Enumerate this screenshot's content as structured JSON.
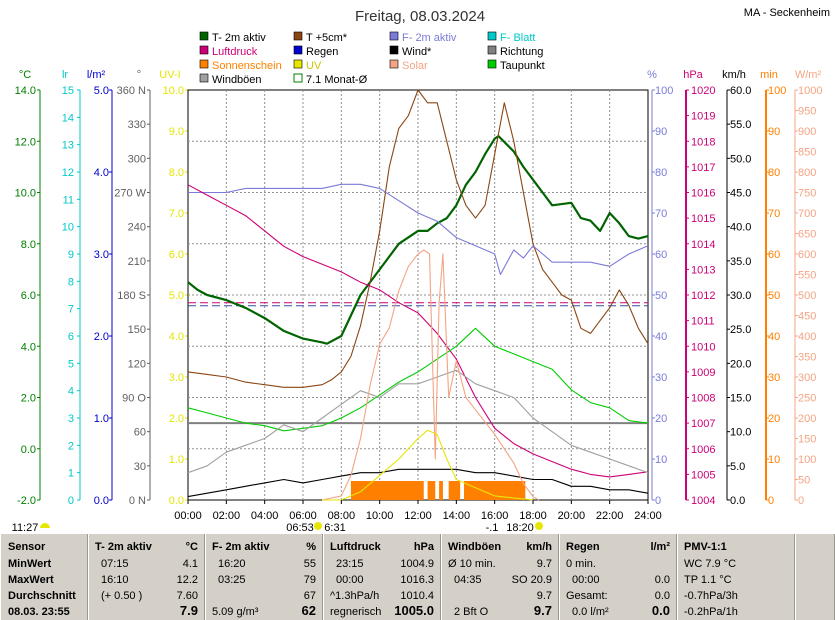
{
  "chart_data": {
    "type": "line",
    "title": "Freitag, 08.03.2024",
    "station": "MA - Seckenheim",
    "legend": [
      {
        "label": "T- 2m aktiv",
        "color": "#006400"
      },
      {
        "label": "T +5cm*",
        "color": "#8b4513"
      },
      {
        "label": "F- 2m aktiv",
        "color": "#7b7bd9"
      },
      {
        "label": "F- Blatt",
        "color": "#00c8c8"
      },
      {
        "label": "Luftdruck",
        "color": "#cc0077"
      },
      {
        "label": "Regen",
        "color": "#0000cc"
      },
      {
        "label": "Wind*",
        "color": "#000000"
      },
      {
        "label": "Richtung",
        "color": "#808080"
      },
      {
        "label": "Sonnenschein",
        "color": "#ff8000"
      },
      {
        "label": "UV",
        "color": "#e6e600"
      },
      {
        "label": "Solar",
        "color": "#f4a484"
      },
      {
        "label": "Taupunkt",
        "color": "#00cc00"
      },
      {
        "label": "Windböen",
        "color": "#a0a0a0"
      },
      {
        "label": "7.1 Monat-Ø",
        "color": "#008000"
      }
    ],
    "axes": [
      {
        "unit": "°C",
        "color": "#008000",
        "ticks": [
          "14.0",
          "12.0",
          "10.0",
          "8.0",
          "6.0",
          "4.0",
          "2.0",
          "0.0",
          "-2.0"
        ]
      },
      {
        "unit": "lr",
        "color": "#00c8c8",
        "ticks": [
          "15",
          "14",
          "13",
          "12",
          "11",
          "10",
          "9",
          "8",
          "7",
          "6",
          "5",
          "4",
          "3",
          "2",
          "1",
          "0"
        ]
      },
      {
        "unit": "l/m²",
        "color": "#0000cc",
        "ticks": [
          "5.0",
          "4.0",
          "3.0",
          "2.0",
          "1.0",
          "0.0"
        ]
      },
      {
        "unit": "°",
        "color": "#606060",
        "ticks": [
          "360 N",
          "330",
          "300",
          "270 W",
          "240",
          "210",
          "180 S",
          "150",
          "120",
          "90 O",
          "60",
          "30",
          "0 N"
        ]
      },
      {
        "unit": "UV-I",
        "color": "#e6e600",
        "ticks": [
          "10.0",
          "9.0",
          "8.0",
          "7.0",
          "6.0",
          "5.0",
          "4.0",
          "3.0",
          "2.0",
          "1.0",
          "0.0"
        ]
      },
      {
        "unit": "%",
        "color": "#7b7bd9",
        "ticks": [
          "100",
          "90",
          "80",
          "70",
          "60",
          "50",
          "40",
          "30",
          "20",
          "10",
          "0"
        ]
      },
      {
        "unit": "hPa",
        "color": "#cc0077",
        "ticks": [
          "1020",
          "1019",
          "1018",
          "1017",
          "1016",
          "1015",
          "1014",
          "1013",
          "1012",
          "1011",
          "1010",
          "1009",
          "1008",
          "1007",
          "1006",
          "1005",
          "1004"
        ]
      },
      {
        "unit": "km/h",
        "color": "#000000",
        "ticks": [
          "60.0",
          "55.0",
          "50.0",
          "45.0",
          "40.0",
          "35.0",
          "30.0",
          "25.0",
          "20.0",
          "15.0",
          "10.0",
          "5.0",
          "0.0"
        ]
      },
      {
        "unit": "min",
        "color": "#ff8000",
        "ticks": [
          "100",
          "90",
          "80",
          "70",
          "60",
          "50",
          "40",
          "30",
          "20",
          "10",
          "0"
        ]
      },
      {
        "unit": "W/m²",
        "color": "#f4a484",
        "ticks": [
          "1000",
          "950",
          "900",
          "850",
          "800",
          "750",
          "700",
          "650",
          "600",
          "550",
          "500",
          "450",
          "400",
          "350",
          "300",
          "250",
          "200",
          "150",
          "100",
          "50",
          "0"
        ]
      }
    ],
    "x_ticks": [
      "00:00",
      "02:00",
      "04:00",
      "06:00",
      "08:00",
      "10:00",
      "12:00",
      "14:00",
      "16:00",
      "18:00",
      "20:00",
      "22:00",
      "24:00"
    ],
    "sunrise_time": "06:53",
    "sunset_time": "18:20",
    "moon_time": "6:31",
    "moon_phase": "-.1",
    "moon_set_time": "11:27",
    "series": [
      {
        "name": "T- 2m aktiv",
        "axis": "°C",
        "color": "#006400",
        "x": [
          0,
          0.5,
          1,
          2,
          3,
          4,
          5,
          6,
          7,
          7.25,
          8,
          8.5,
          9,
          10,
          11,
          12,
          12.5,
          13,
          13.5,
          14,
          14.5,
          15,
          15.5,
          16,
          16.2,
          17,
          17.5,
          18,
          18.5,
          19,
          20,
          20.5,
          21,
          21.5,
          22,
          22.5,
          23,
          23.5,
          24
        ],
        "y": [
          6.5,
          6.2,
          6.0,
          5.8,
          5.5,
          5.1,
          4.6,
          4.3,
          4.15,
          4.1,
          4.4,
          5.2,
          6.0,
          7.0,
          8.0,
          8.5,
          8.5,
          8.8,
          9.0,
          9.5,
          10.3,
          10.8,
          11.5,
          12.1,
          12.2,
          11.6,
          11.0,
          10.5,
          10.0,
          9.5,
          9.6,
          9.0,
          8.9,
          8.5,
          9.2,
          8.8,
          8.3,
          8.2,
          8.3
        ]
      },
      {
        "name": "T +5cm*",
        "axis": "°C",
        "color": "#8b4513",
        "x": [
          0,
          1,
          2,
          3,
          4,
          5,
          6,
          7,
          7.5,
          8,
          8.5,
          9,
          9.5,
          10,
          10.5,
          11,
          11.5,
          12,
          12.5,
          13,
          13.5,
          14,
          14.5,
          15,
          15.5,
          16,
          16.5,
          17,
          17.5,
          18,
          18.5,
          19,
          19.5,
          20,
          20.5,
          21,
          21.5,
          22,
          22.5,
          23,
          23.5,
          24
        ],
        "y": [
          3.0,
          2.9,
          2.8,
          2.6,
          2.5,
          2.4,
          2.4,
          2.5,
          2.7,
          3.0,
          3.6,
          4.8,
          6.5,
          8.5,
          11,
          12.5,
          13,
          14,
          13.5,
          13.5,
          12.0,
          10.5,
          9.5,
          9.0,
          9.5,
          11.5,
          13.5,
          12.0,
          10.0,
          8.0,
          7.0,
          6.5,
          6.0,
          5.8,
          4.7,
          4.5,
          5.0,
          5.5,
          6.2,
          5.6,
          4.7,
          4.1
        ]
      },
      {
        "name": "F- 2m aktiv",
        "axis": "%",
        "color": "#7b7bd9",
        "x": [
          0,
          1,
          2,
          3,
          4,
          5,
          6,
          7,
          8,
          9,
          10,
          11,
          12,
          13,
          14,
          15,
          16,
          16.3,
          17,
          17.5,
          18,
          18.5,
          19,
          20,
          21,
          22,
          23,
          24
        ],
        "y": [
          75,
          75,
          75,
          76,
          76,
          76,
          76,
          76,
          77,
          77,
          76,
          73,
          70,
          68,
          64,
          62,
          60,
          55,
          61,
          59,
          62,
          60,
          58,
          58,
          58,
          57,
          60,
          62
        ]
      },
      {
        "name": "Luftdruck",
        "axis": "hPa",
        "color": "#cc0077",
        "x": [
          0,
          1,
          2,
          3,
          4,
          5,
          6,
          7,
          8,
          9,
          10,
          11,
          12,
          13,
          14,
          15,
          16,
          17,
          18,
          19,
          20,
          21,
          22,
          23,
          24
        ],
        "y": [
          1016.3,
          1015.9,
          1015.5,
          1015.1,
          1014.5,
          1013.9,
          1013.5,
          1013.2,
          1012.9,
          1012.5,
          1012.2,
          1011.7,
          1011.3,
          1010.5,
          1009.5,
          1008.0,
          1006.8,
          1006.2,
          1005.8,
          1005.5,
          1005.2,
          1005.0,
          1004.9,
          1005.0,
          1005.1
        ]
      },
      {
        "name": "Taupunkt",
        "axis": "°C",
        "color": "#00cc00",
        "x": [
          0,
          1,
          2,
          3,
          4,
          5,
          6,
          7,
          8,
          9,
          10,
          11,
          12,
          13,
          14,
          15,
          16,
          17,
          18,
          19,
          20,
          21,
          22,
          23,
          24
        ],
        "y": [
          1.6,
          1.4,
          1.2,
          1.0,
          0.9,
          0.7,
          0.8,
          0.9,
          1.2,
          1.6,
          2.1,
          2.6,
          3.0,
          3.5,
          4.0,
          4.7,
          4.0,
          3.7,
          3.4,
          3.1,
          2.3,
          1.8,
          1.6,
          1.1,
          1.0
        ]
      },
      {
        "name": "Wind*",
        "axis": "km/h",
        "color": "#000000",
        "x": [
          0,
          1,
          2,
          3,
          4,
          5,
          6,
          7,
          8,
          9,
          10,
          11,
          12,
          13,
          14,
          15,
          16,
          17,
          18,
          19,
          20,
          21,
          22,
          23,
          24
        ],
        "y": [
          0.5,
          1,
          1.5,
          2,
          2.5,
          3,
          2.5,
          3,
          3.5,
          4,
          4,
          4.5,
          4.5,
          4.5,
          4.5,
          4,
          4,
          3.5,
          3,
          3,
          2,
          2,
          1.5,
          1.5,
          1
        ]
      },
      {
        "name": "Windböen",
        "axis": "km/h",
        "color": "#a0a0a0",
        "x": [
          0,
          1,
          2,
          3,
          4,
          5,
          6,
          7,
          8,
          9,
          10,
          11,
          12,
          13,
          14,
          15,
          16,
          17,
          18,
          19,
          20,
          21,
          22,
          23,
          24
        ],
        "y": [
          4,
          5,
          7,
          8,
          9,
          11,
          10,
          12,
          14,
          16,
          15,
          17,
          17,
          18,
          19,
          17,
          16,
          15,
          12,
          10,
          8,
          7,
          6,
          5,
          4
        ]
      },
      {
        "name": "Solar",
        "axis": "W/m²",
        "color": "#f4a484",
        "x": [
          7,
          8,
          8.5,
          9,
          9.5,
          10,
          10.5,
          11,
          11.5,
          12,
          12.3,
          12.6,
          12.9,
          13.1,
          13.3,
          13.6,
          14,
          14.5,
          15,
          16,
          17,
          17.5,
          18,
          18.3
        ],
        "y": [
          0,
          10,
          60,
          150,
          280,
          380,
          420,
          510,
          570,
          600,
          610,
          600,
          100,
          480,
          600,
          250,
          340,
          250,
          220,
          160,
          90,
          40,
          8,
          0
        ]
      },
      {
        "name": "UV",
        "axis": "UV-I",
        "color": "#e6e600",
        "x": [
          7,
          8,
          9,
          10,
          11,
          12,
          12.5,
          13,
          13.5,
          14,
          15,
          16,
          17,
          18
        ],
        "y": [
          0,
          0,
          0.2,
          0.6,
          1.0,
          1.5,
          1.7,
          1.6,
          1.0,
          0.5,
          0.3,
          0.1,
          0.05,
          0
        ]
      }
    ],
    "sunshine_blocks": [
      [
        8.5,
        12.3
      ],
      [
        12.5,
        12.9
      ],
      [
        13.1,
        13.3
      ],
      [
        13.6,
        14.2
      ],
      [
        14.4,
        17.6
      ]
    ],
    "sunshine_min": 50,
    "dew_ref_temp": 1.0,
    "month_avg_temp": 5.7
  },
  "footer": {
    "sensor": {
      "h": "Sensor",
      "min": "MinWert",
      "max": "MaxWert",
      "avg": "Durchschnitt",
      "date": "08.03.  23:55"
    },
    "temp": {
      "h": "T- 2m aktiv",
      "unit": "°C",
      "min_t": "07:15",
      "min_v": "4.1",
      "max_t": "16:10",
      "max_v": "12.2",
      "avg_t": "(+ 0.50 )",
      "avg_v": "7.60",
      "cur": "7.9"
    },
    "hum": {
      "h": "F- 2m aktiv",
      "unit": "%",
      "min_t": "16:20",
      "min_v": "55",
      "max_t": "03:25",
      "max_v": "79",
      "avg_v": "67",
      "abs": "5.09 g/m³",
      "cur": "62"
    },
    "press": {
      "h": "Luftdruck",
      "unit": "hPa",
      "min_t": "23:15",
      "min_v": "1004.9",
      "max_t": "00:00",
      "max_v": "1016.3",
      "trend": "^1.3hPa/h",
      "avg_v": "1010.4",
      "state": "regnerisch",
      "cur": "1005.0"
    },
    "wind": {
      "h": "Windböen",
      "unit": "km/h",
      "r1": "Ø 10 min.",
      "r1v": "9.7",
      "r2t": "04:35",
      "r2v": "SO 20.9",
      "r3v": "9.7",
      "r4": "2 Bft O",
      "cur": "9.7"
    },
    "rain": {
      "h": "Regen",
      "unit": "l/m²",
      "r1": "0 min.",
      "r2t": "00:00",
      "r2v": "0.0",
      "r3": "Gesamt:",
      "r3v": "0.0",
      "r4": "0.0 l/m²",
      "cur": "0.0"
    },
    "pmv": {
      "h": "PMV-1:1",
      "r1": "WC 7.9 °C",
      "r2": "TP 1.1 °C",
      "r3": "-0.7hPa/3h",
      "r4": "-0.2hPa/1h"
    }
  }
}
